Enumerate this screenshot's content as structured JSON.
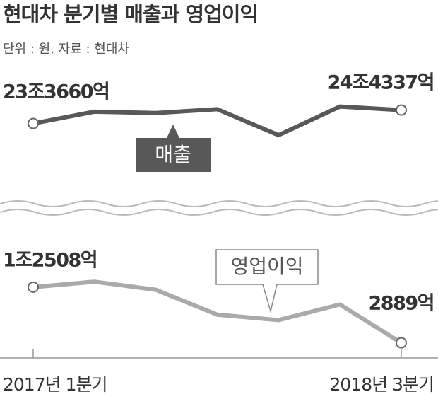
{
  "chart_data": {
    "type": "line",
    "title": "현대차 분기별 매출과 영업이익",
    "subtitle": "단위 : 원, 자료 : 현대차",
    "categories": [
      "2017년 1분기",
      null,
      null,
      null,
      null,
      null,
      "2018년 3분기"
    ],
    "series": [
      {
        "name": "매출",
        "color": "#585858",
        "values": [
          233660,
          243080,
          242010,
          245010,
          224366,
          247118,
          244337
        ],
        "value_labels": [
          "23조3660억",
          null,
          null,
          null,
          null,
          null,
          "24조4337억"
        ]
      },
      {
        "name": "영업이익",
        "color": "#aaaaaa",
        "axis": "y2",
        "values": [
          12508,
          13445,
          12042,
          7752,
          6813,
          9508,
          2889
        ],
        "value_labels": [
          "1조2508억",
          null,
          null,
          null,
          null,
          null,
          "2889억"
        ]
      }
    ],
    "ylim": [
      185000,
      270000
    ],
    "y2lim": [
      1000,
      23000
    ]
  }
}
